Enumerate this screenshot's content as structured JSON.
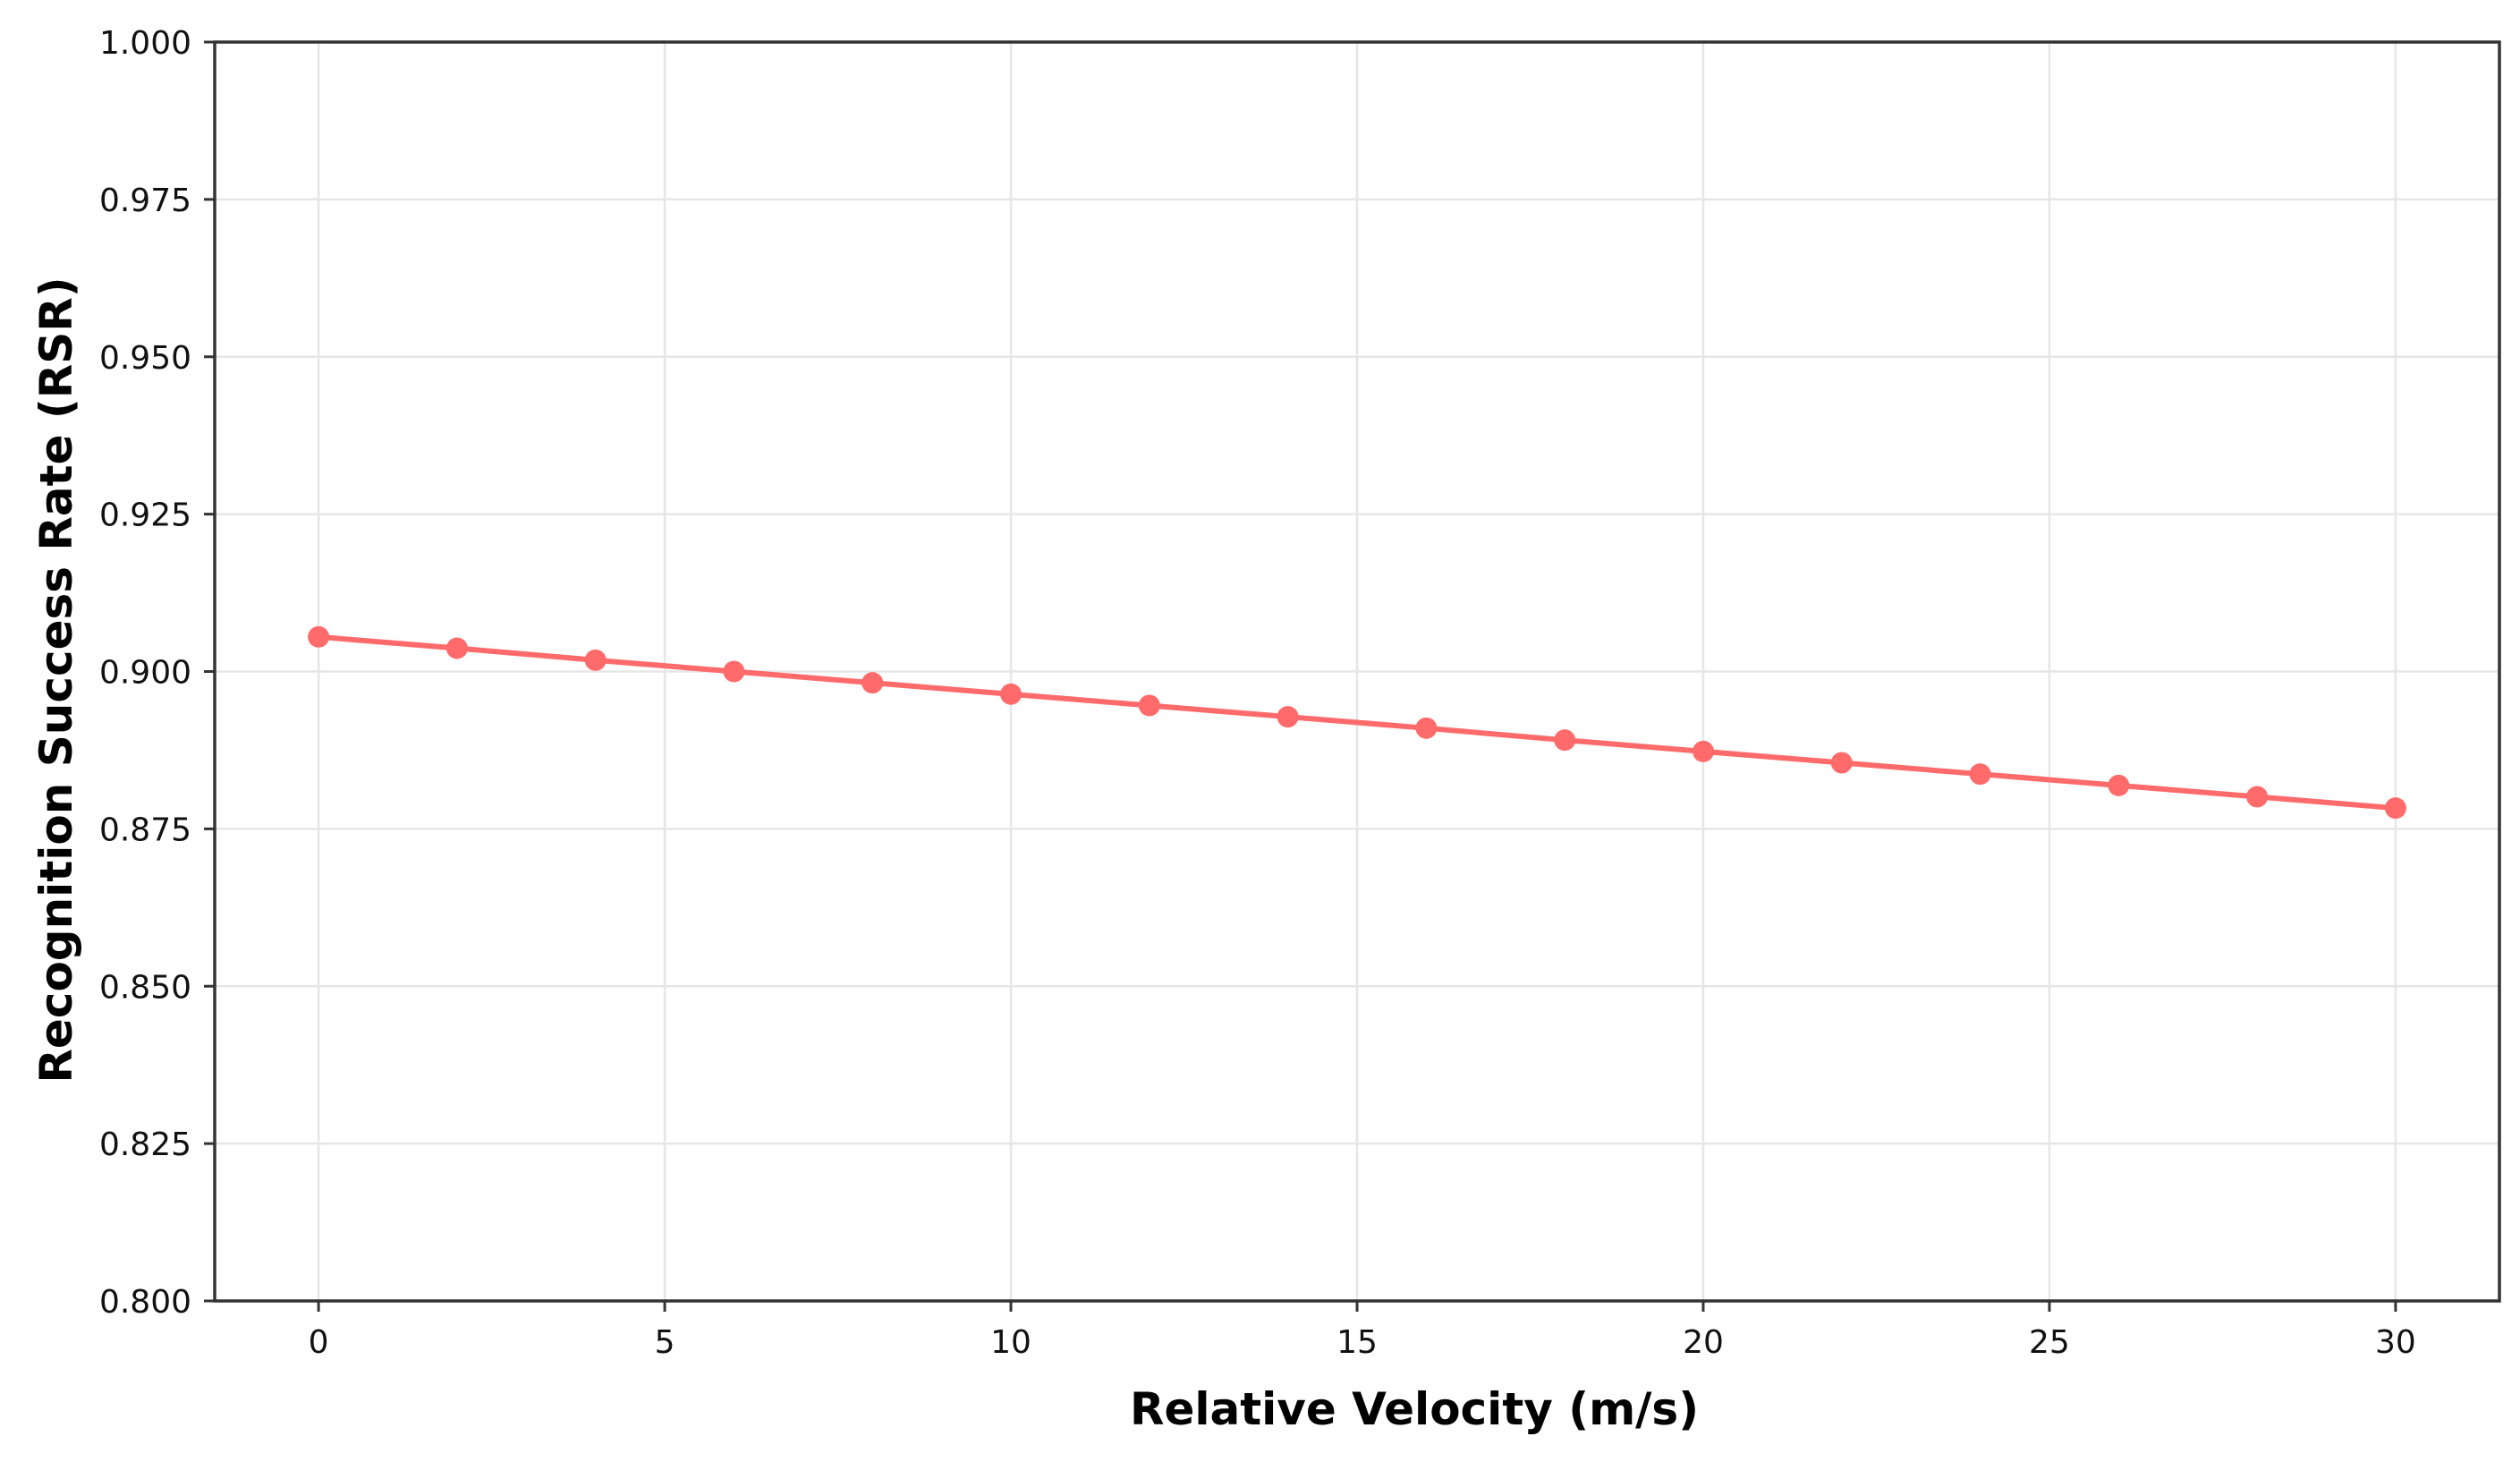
{
  "chart_data": {
    "type": "line",
    "title": "",
    "xlabel": "Relative Velocity (m/s)",
    "ylabel": "Recognition Success Rate (RSR)",
    "xlim": [
      -1.5,
      31.5
    ],
    "ylim": [
      0.8,
      1.0
    ],
    "x_ticks": [
      0,
      5,
      10,
      15,
      20,
      25,
      30
    ],
    "x_tick_labels": [
      "0",
      "5",
      "10",
      "15",
      "20",
      "25",
      "30"
    ],
    "y_ticks": [
      0.8,
      0.825,
      0.85,
      0.875,
      0.9,
      0.925,
      0.95,
      0.975,
      1.0
    ],
    "y_tick_labels": [
      "0.800",
      "0.825",
      "0.850",
      "0.875",
      "0.900",
      "0.925",
      "0.950",
      "0.975",
      "1.000"
    ],
    "grid": true,
    "legend": "none",
    "series": [
      {
        "color": "#ff6b6b",
        "marker": "circle",
        "x": [
          0,
          2,
          4,
          6,
          8,
          10,
          12,
          14,
          16,
          18,
          20,
          22,
          24,
          26,
          28,
          30
        ],
        "y": [
          0.9055,
          0.9037,
          0.9018,
          0.9,
          0.8982,
          0.8964,
          0.8946,
          0.8928,
          0.891,
          0.8891,
          0.8873,
          0.8855,
          0.8837,
          0.8819,
          0.8801,
          0.8783
        ]
      }
    ]
  }
}
